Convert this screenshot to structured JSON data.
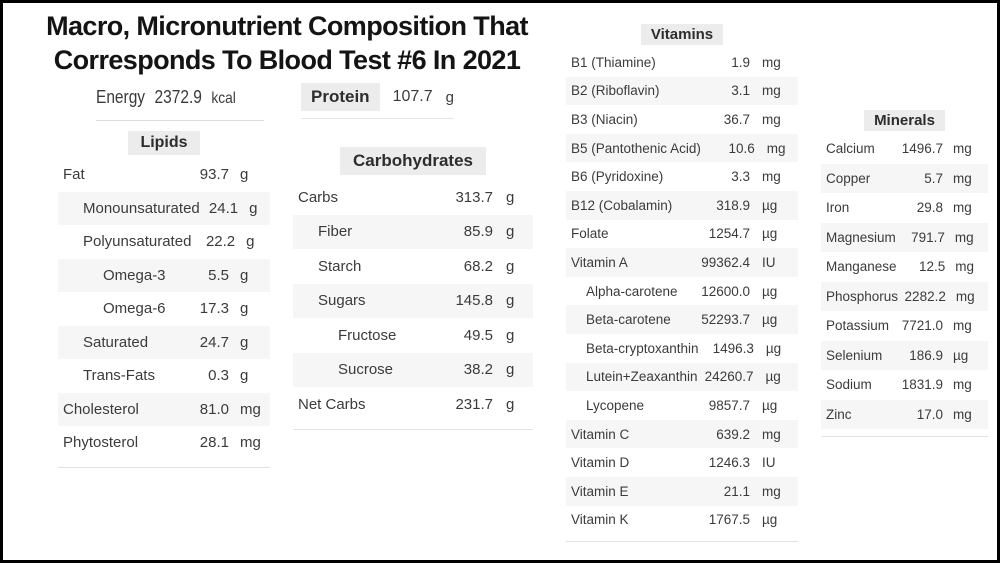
{
  "colors": {
    "frame_border": "#000000",
    "background": "#ffffff",
    "stripe": "#f6f6f6",
    "header_badge_bg": "#ececec",
    "text": "#3b3b3b",
    "title_text": "#141414"
  },
  "chart_data": {
    "type": "table",
    "title_line1": "Macro, Micronutrient Composition That",
    "title_line2": "Corresponds To Blood Test #6 In 2021",
    "summary": {
      "energy": {
        "label": "Energy",
        "value": "2372.9",
        "unit": "kcal"
      },
      "protein": {
        "label": "Protein",
        "value": "107.7",
        "unit": "g"
      }
    },
    "sections": [
      {
        "title": "Lipids",
        "rows": [
          {
            "label": "Fat",
            "value": "93.7",
            "unit": "g",
            "indent": 0
          },
          {
            "label": "Monounsaturated",
            "value": "24.1",
            "unit": "g",
            "indent": 1
          },
          {
            "label": "Polyunsaturated",
            "value": "22.2",
            "unit": "g",
            "indent": 1
          },
          {
            "label": "Omega-3",
            "value": "5.5",
            "unit": "g",
            "indent": 2
          },
          {
            "label": "Omega-6",
            "value": "17.3",
            "unit": "g",
            "indent": 2
          },
          {
            "label": "Saturated",
            "value": "24.7",
            "unit": "g",
            "indent": 1
          },
          {
            "label": "Trans-Fats",
            "value": "0.3",
            "unit": "g",
            "indent": 1
          },
          {
            "label": "Cholesterol",
            "value": "81.0",
            "unit": "mg",
            "indent": 0
          },
          {
            "label": "Phytosterol",
            "value": "28.1",
            "unit": "mg",
            "indent": 0
          }
        ]
      },
      {
        "title": "Carbohydrates",
        "rows": [
          {
            "label": "Carbs",
            "value": "313.7",
            "unit": "g",
            "indent": 0
          },
          {
            "label": "Fiber",
            "value": "85.9",
            "unit": "g",
            "indent": 1
          },
          {
            "label": "Starch",
            "value": "68.2",
            "unit": "g",
            "indent": 1
          },
          {
            "label": "Sugars",
            "value": "145.8",
            "unit": "g",
            "indent": 1
          },
          {
            "label": "Fructose",
            "value": "49.5",
            "unit": "g",
            "indent": 2
          },
          {
            "label": "Sucrose",
            "value": "38.2",
            "unit": "g",
            "indent": 2
          },
          {
            "label": "Net Carbs",
            "value": "231.7",
            "unit": "g",
            "indent": 0
          }
        ]
      },
      {
        "title": "Vitamins",
        "rows": [
          {
            "label": "B1 (Thiamine)",
            "value": "1.9",
            "unit": "mg",
            "indent": 0
          },
          {
            "label": "B2 (Riboflavin)",
            "value": "3.1",
            "unit": "mg",
            "indent": 0
          },
          {
            "label": "B3 (Niacin)",
            "value": "36.7",
            "unit": "mg",
            "indent": 0
          },
          {
            "label": "B5 (Pantothenic Acid)",
            "value": "10.6",
            "unit": "mg",
            "indent": 0
          },
          {
            "label": "B6 (Pyridoxine)",
            "value": "3.3",
            "unit": "mg",
            "indent": 0
          },
          {
            "label": "B12 (Cobalamin)",
            "value": "318.9",
            "unit": "µg",
            "indent": 0
          },
          {
            "label": "Folate",
            "value": "1254.7",
            "unit": "µg",
            "indent": 0
          },
          {
            "label": "Vitamin A",
            "value": "99362.4",
            "unit": "IU",
            "indent": 0
          },
          {
            "label": "Alpha-carotene",
            "value": "12600.0",
            "unit": "µg",
            "indent": 1
          },
          {
            "label": "Beta-carotene",
            "value": "52293.7",
            "unit": "µg",
            "indent": 1
          },
          {
            "label": "Beta-cryptoxanthin",
            "value": "1496.3",
            "unit": "µg",
            "indent": 1
          },
          {
            "label": "Lutein+Zeaxanthin",
            "value": "24260.7",
            "unit": "µg",
            "indent": 1
          },
          {
            "label": "Lycopene",
            "value": "9857.7",
            "unit": "µg",
            "indent": 1
          },
          {
            "label": "Vitamin C",
            "value": "639.2",
            "unit": "mg",
            "indent": 0
          },
          {
            "label": "Vitamin D",
            "value": "1246.3",
            "unit": "IU",
            "indent": 0
          },
          {
            "label": "Vitamin E",
            "value": "21.1",
            "unit": "mg",
            "indent": 0
          },
          {
            "label": "Vitamin K",
            "value": "1767.5",
            "unit": "µg",
            "indent": 0
          }
        ]
      },
      {
        "title": "Minerals",
        "rows": [
          {
            "label": "Calcium",
            "value": "1496.7",
            "unit": "mg",
            "indent": 0
          },
          {
            "label": "Copper",
            "value": "5.7",
            "unit": "mg",
            "indent": 0
          },
          {
            "label": "Iron",
            "value": "29.8",
            "unit": "mg",
            "indent": 0
          },
          {
            "label": "Magnesium",
            "value": "791.7",
            "unit": "mg",
            "indent": 0
          },
          {
            "label": "Manganese",
            "value": "12.5",
            "unit": "mg",
            "indent": 0
          },
          {
            "label": "Phosphorus",
            "value": "2282.2",
            "unit": "mg",
            "indent": 0
          },
          {
            "label": "Potassium",
            "value": "7721.0",
            "unit": "mg",
            "indent": 0
          },
          {
            "label": "Selenium",
            "value": "186.9",
            "unit": "µg",
            "indent": 0
          },
          {
            "label": "Sodium",
            "value": "1831.9",
            "unit": "mg",
            "indent": 0
          },
          {
            "label": "Zinc",
            "value": "17.0",
            "unit": "mg",
            "indent": 0
          }
        ]
      }
    ]
  }
}
